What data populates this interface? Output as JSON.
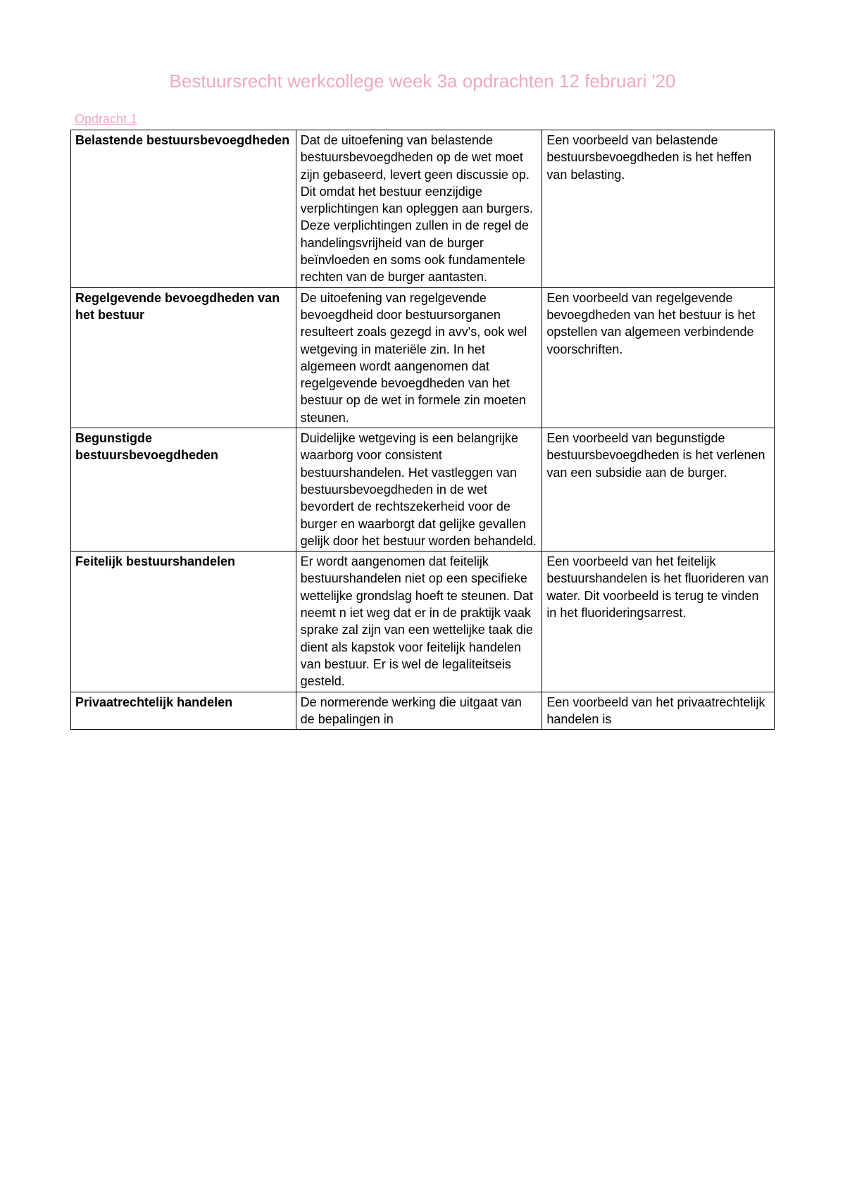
{
  "title": "Bestuursrecht werkcollege week 3a opdrachten 12 februari '20",
  "section_heading": "Opdracht 1",
  "colors": {
    "title_color": "#f0a8c0",
    "heading_color": "#f0a8c0",
    "border_color": "#000000",
    "text_color": "#000000",
    "background": "#ffffff"
  },
  "typography": {
    "title_fontsize": 26,
    "heading_fontsize": 18,
    "body_fontsize": 18,
    "font_family": "Arial"
  },
  "table": {
    "column_widths_pct": [
      32,
      35,
      33
    ],
    "rows": [
      {
        "col1": "Belastende bestuursbevoegdheden",
        "col2": "Dat de uitoefening van belastende bestuursbevoegdheden op de wet moet zijn gebaseerd, levert geen discussie op. Dit omdat het bestuur eenzijdige verplichtingen kan opleggen aan burgers. Deze verplichtingen zullen in de regel de handelingsvrijheid van de burger beïnvloeden en soms ook fundamentele rechten van de burger aantasten.",
        "col3": "Een voorbeeld van belastende bestuursbevoegdheden is het heffen van belasting."
      },
      {
        "col1": "Regelgevende bevoegdheden van het bestuur",
        "col2": "De uitoefening van regelgevende bevoegdheid door bestuursorganen resulteert zoals gezegd in avv's, ook wel wetgeving in materiële zin. In het algemeen wordt aangenomen dat regelgevende bevoegdheden van het bestuur op de wet in formele zin moeten steunen.",
        "col3": "Een voorbeeld van regelgevende bevoegdheden van het bestuur is het opstellen van algemeen verbindende voorschriften."
      },
      {
        "col1": "Begunstigde bestuursbevoegdheden",
        "col2": "Duidelijke wetgeving is een belangrijke waarborg voor consistent bestuurshandelen. Het vastleggen van bestuursbevoegdheden in de wet bevordert de rechtszekerheid voor de burger en waarborgt dat gelijke gevallen gelijk door het bestuur worden behandeld.",
        "col3": "Een voorbeeld van begunstigde bestuursbevoegdheden is het verlenen van een subsidie aan de burger."
      },
      {
        "col1": "Feitelijk bestuurshandelen",
        "col2": "Er wordt aangenomen dat feitelijk bestuurshandelen niet op een specifieke wettelijke grondslag hoeft te steunen. Dat neemt n iet weg dat er in de praktijk vaak sprake zal zijn van een wettelijke taak die dient als kapstok voor feitelijk handelen van bestuur. Er is wel de legaliteitseis gesteld.",
        "col3": "Een voorbeeld van het feitelijk bestuurshandelen is het fluorideren van water. Dit voorbeeld is terug te vinden in het fluorideringsarrest."
      },
      {
        "col1": "Privaatrechtelijk handelen",
        "col2": "De normerende werking die uitgaat van de bepalingen in",
        "col3": "Een voorbeeld van het privaatrechtelijk handelen is"
      }
    ]
  }
}
